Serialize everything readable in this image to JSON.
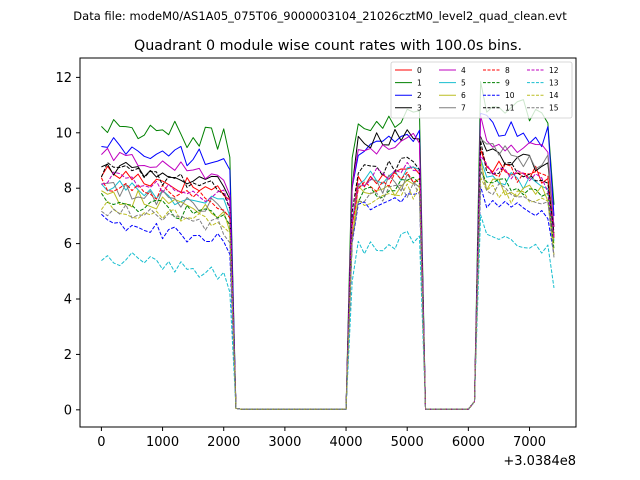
{
  "figure": {
    "suptitle": "Data file: modeM0/AS1A05_075T06_9000003104_21026cztM0_level2_quad_clean.evt"
  },
  "chart_data": {
    "type": "line",
    "title": "Quadrant 0 module wise count rates with 100.0s bins.",
    "xlabel": "",
    "ylabel": "",
    "x_offset_label": "+3.0384e8",
    "xlim": [
      -350,
      7760
    ],
    "ylim": [
      -0.62,
      12.7
    ],
    "x_ticks": [
      0,
      1000,
      2000,
      3000,
      4000,
      5000,
      6000,
      7000
    ],
    "x_tick_labels": [
      "0",
      "1000",
      "2000",
      "3000",
      "4000",
      "5000",
      "6000",
      "7000"
    ],
    "y_ticks": [
      0,
      2,
      4,
      6,
      8,
      10,
      12
    ],
    "y_tick_labels": [
      "0",
      "2",
      "4",
      "6",
      "8",
      "10",
      "12"
    ],
    "grid": false,
    "legend_position": "upper-right",
    "legend_columns": 4,
    "segments": {
      "seg1": {
        "start": 0,
        "step": 100,
        "count": 22
      },
      "gap1": {
        "x": [
          2200,
          2300,
          4000
        ],
        "values": [
          0.05,
          0.02,
          0.02
        ]
      },
      "seg2": {
        "start": 4100,
        "step": 100,
        "count": 12
      },
      "gap2": {
        "x": [
          5300,
          6000,
          6100
        ],
        "values": [
          0.02,
          0.02,
          0.3
        ]
      },
      "seg3": {
        "start": 6200,
        "step": 100,
        "count": 13
      }
    },
    "series": [
      {
        "name": "0",
        "color": "#ff0000",
        "dash": "solid",
        "level1": 8.6,
        "level2": 8.2,
        "level3": 9.0,
        "noise": 0.35,
        "tail": 6.3
      },
      {
        "name": "1",
        "color": "#008000",
        "dash": "solid",
        "level1": 10.4,
        "level2": 10.3,
        "level3": 11.2,
        "noise": 0.45,
        "tail": 7.4
      },
      {
        "name": "2",
        "color": "#0000ff",
        "dash": "solid",
        "level1": 9.6,
        "level2": 9.4,
        "level3": 10.4,
        "noise": 0.4,
        "tail": 7.0
      },
      {
        "name": "3",
        "color": "#000000",
        "dash": "solid",
        "level1": 8.8,
        "level2": 9.6,
        "level3": 9.3,
        "noise": 0.3,
        "tail": 6.6
      },
      {
        "name": "4",
        "color": "#bf00bf",
        "dash": "solid",
        "level1": 9.2,
        "level2": 9.3,
        "level3": 9.8,
        "noise": 0.3,
        "tail": 6.6
      },
      {
        "name": "5",
        "color": "#17becf",
        "dash": "solid",
        "level1": 8.1,
        "level2": 8.2,
        "level3": 8.6,
        "noise": 0.3,
        "tail": 6.1
      },
      {
        "name": "6",
        "color": "#bcbd22",
        "dash": "solid",
        "level1": 7.8,
        "level2": 7.7,
        "level3": 8.3,
        "noise": 0.35,
        "tail": 6.0
      },
      {
        "name": "7",
        "color": "#7f7f7f",
        "dash": "solid",
        "level1": 8.0,
        "level2": 7.9,
        "level3": 9.4,
        "noise": 0.35,
        "tail": 6.2
      },
      {
        "name": "8",
        "color": "#ff0000",
        "dash": "dashed",
        "level1": 8.2,
        "level2": 8.0,
        "level3": 8.8,
        "noise": 0.3,
        "tail": 6.2
      },
      {
        "name": "9",
        "color": "#008000",
        "dash": "dashed",
        "level1": 7.6,
        "level2": 7.7,
        "level3": 8.3,
        "noise": 0.3,
        "tail": 5.8
      },
      {
        "name": "10",
        "color": "#0000ff",
        "dash": "dashed",
        "level1": 6.8,
        "level2": 7.2,
        "level3": 7.5,
        "noise": 0.3,
        "tail": 5.6
      },
      {
        "name": "11",
        "color": "#000000",
        "dash": "dashed",
        "level1": 8.7,
        "level2": 8.5,
        "level3": 8.9,
        "noise": 0.3,
        "tail": 6.4
      },
      {
        "name": "12",
        "color": "#bf00bf",
        "dash": "dashed",
        "level1": 8.4,
        "level2": 8.3,
        "level3": 8.7,
        "noise": 0.3,
        "tail": 6.2
      },
      {
        "name": "13",
        "color": "#17becf",
        "dash": "dashed",
        "level1": 5.6,
        "level2": 5.8,
        "level3": 6.3,
        "noise": 0.3,
        "tail": 4.4
      },
      {
        "name": "14",
        "color": "#bcbd22",
        "dash": "dashed",
        "level1": 7.4,
        "level2": 7.5,
        "level3": 8.0,
        "noise": 0.3,
        "tail": 5.6
      },
      {
        "name": "15",
        "color": "#7f7f7f",
        "dash": "dashed",
        "level1": 7.3,
        "level2": 7.6,
        "level3": 8.1,
        "noise": 0.3,
        "tail": 5.5
      }
    ]
  }
}
